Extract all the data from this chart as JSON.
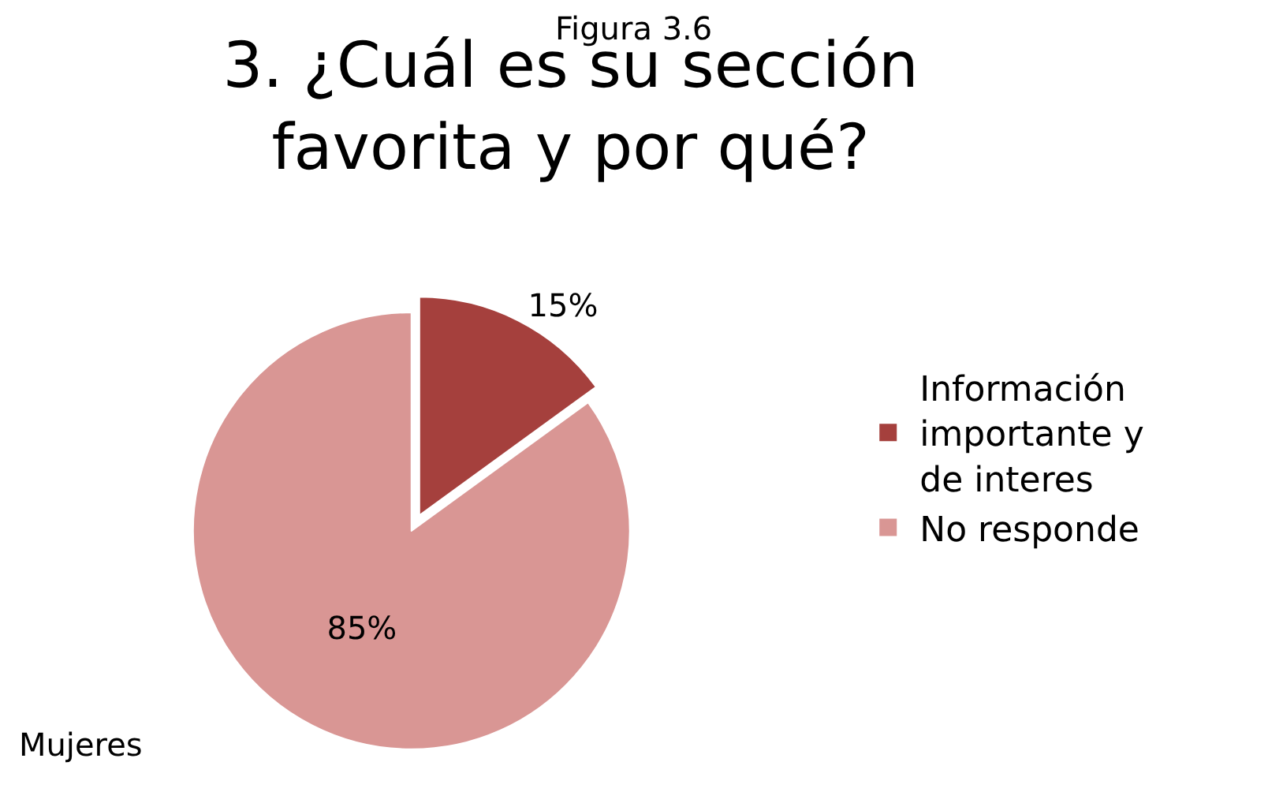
{
  "chart_data": {
    "type": "pie",
    "title": "3. ¿Cuál es su sección favorita y por qué?",
    "categories": [
      "Información importante y de interes",
      "No responde"
    ],
    "values": [
      15,
      85
    ],
    "colors": [
      "#a5403d",
      "#d99694"
    ],
    "value_labels": [
      "15%",
      "85%"
    ],
    "legend": "right",
    "annotations": [
      "Figura 3.6",
      "Mujeres"
    ]
  }
}
